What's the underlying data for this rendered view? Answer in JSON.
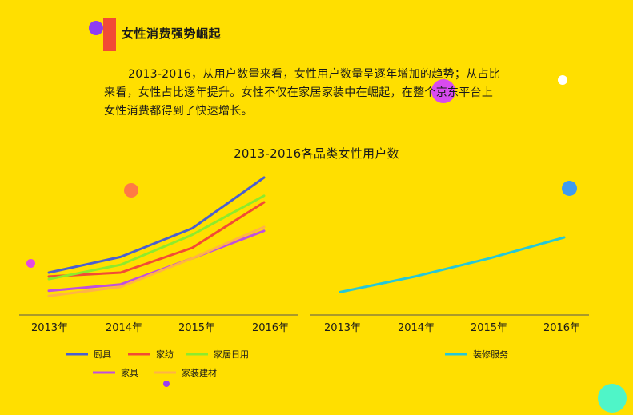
{
  "header": {
    "title": "女性消费强势崛起"
  },
  "intro_text": "2013-2016，从用户数量来看，女性用户数量呈逐年增加的趋势；从占比来看，女性占比逐年提升。女性不仅在家居家装中在崛起，在整个京东平台上女性消费都得到了快速增长。",
  "colors": {
    "background": "#FFDF00",
    "accent_bar": "#F24B35",
    "axis": "#555555"
  },
  "chart_data": [
    {
      "type": "line",
      "title": "2013-2016各品类女性用户数",
      "categories": [
        "2013年",
        "2014年",
        "2015年",
        "2016年"
      ],
      "ylim": [
        0,
        100
      ],
      "grid": false,
      "legend_position": "bottom",
      "series": [
        {
          "name": "厨具",
          "color": "#4A5FD0",
          "values": [
            27,
            39,
            61,
            100
          ]
        },
        {
          "name": "家纺",
          "color": "#F24B35",
          "values": [
            24,
            27,
            46,
            81
          ]
        },
        {
          "name": "家居日用",
          "color": "#8DEB2C",
          "values": [
            22,
            33,
            56,
            86
          ]
        },
        {
          "name": "家具",
          "color": "#C04FE0",
          "values": [
            13,
            18,
            38,
            59
          ]
        },
        {
          "name": "家装建材",
          "color": "#FFB347",
          "values": [
            9,
            16,
            38,
            62
          ]
        }
      ]
    },
    {
      "type": "line",
      "title": "",
      "categories": [
        "2013年",
        "2014年",
        "2015年",
        "2016年"
      ],
      "ylim": [
        0,
        100
      ],
      "grid": false,
      "legend_position": "bottom",
      "series": [
        {
          "name": "装修服务",
          "color": "#25C8D8",
          "values": [
            12,
            24,
            38,
            54
          ]
        }
      ]
    }
  ],
  "decor_dots": [
    {
      "color": "#8E3CF2"
    },
    {
      "color": "#D84BF0"
    },
    {
      "color": "#FFFFFF"
    },
    {
      "color": "#FF7A45"
    },
    {
      "color": "#3F9BF0"
    },
    {
      "color": "#E44BE0"
    },
    {
      "color": "#9B3CF0"
    },
    {
      "color": "#4FF5C8"
    }
  ]
}
